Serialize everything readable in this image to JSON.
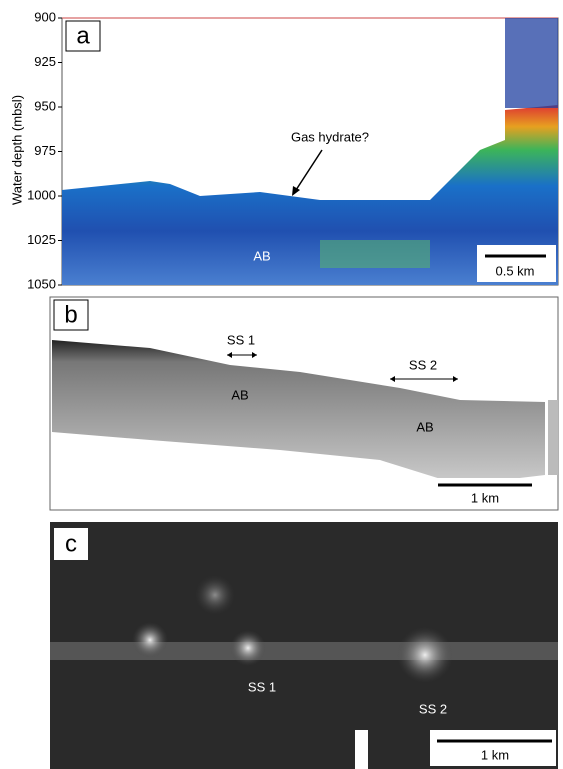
{
  "panels": {
    "a": {
      "label": "a",
      "y_axis_label": "Water depth (mbsl)",
      "ylim": [
        900,
        1050
      ],
      "yticks": [
        900,
        925,
        950,
        975,
        1000,
        1025,
        1050
      ],
      "annotations": [
        "Gas hydrate?",
        "AB"
      ],
      "scale_bar": "0.5 km"
    },
    "b": {
      "label": "b",
      "annotations": [
        "SS 1",
        "AB",
        "SS 2",
        "AB"
      ],
      "scale_bar": "1 km"
    },
    "c": {
      "label": "c",
      "annotations": [
        "SS 1",
        "SS 2"
      ],
      "scale_bar": "1 km"
    }
  }
}
